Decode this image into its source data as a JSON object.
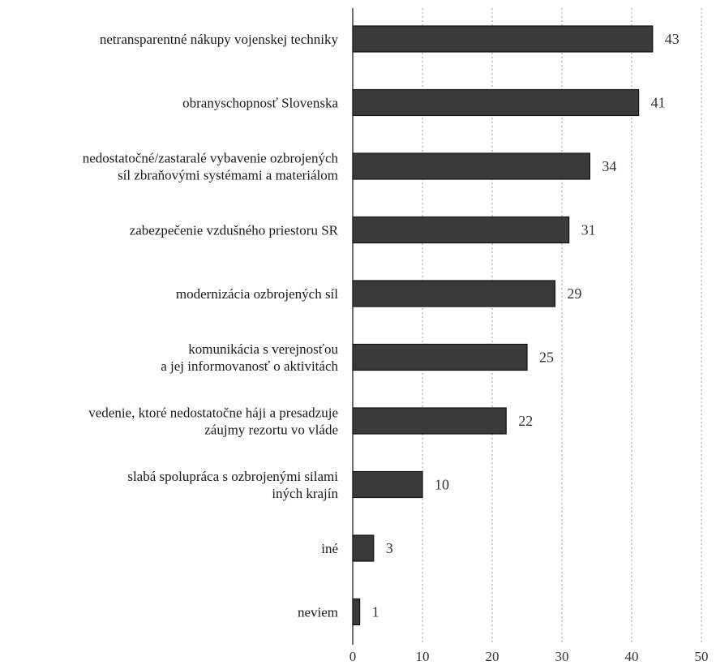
{
  "chart_data": {
    "type": "bar",
    "orientation": "horizontal",
    "title": "",
    "xlabel": "",
    "ylabel": "",
    "categories": [
      [
        "netransparentné nákupy vojenskej techniky"
      ],
      [
        "obranyschopnosť Slovenska"
      ],
      [
        "nedostatočné/zastaralé vybavenie ozbrojených",
        "síl zbraňovými systémami a materiálom"
      ],
      [
        "zabezpečenie vzdušného priestoru SR"
      ],
      [
        "modernizácia ozbrojených síl"
      ],
      [
        "komunikácia s verejnosťou",
        "a jej informovanosť o aktivitách"
      ],
      [
        "vedenie, ktoré nedostatočne háji a presadzuje",
        "záujmy rezortu vo vláde"
      ],
      [
        "slabá spolupráca s ozbrojenými silami",
        "iných krajín"
      ],
      [
        "iné"
      ],
      [
        "neviem"
      ]
    ],
    "values": [
      43,
      41,
      34,
      31,
      29,
      25,
      22,
      10,
      3,
      1
    ],
    "xlim": [
      0,
      50
    ],
    "xticks": [
      "0",
      "10",
      "20",
      "30",
      "40",
      "50"
    ],
    "grid": "vertical-dotted",
    "legend": "none",
    "bar_color": "#3a3a3a",
    "data_labels": true
  }
}
